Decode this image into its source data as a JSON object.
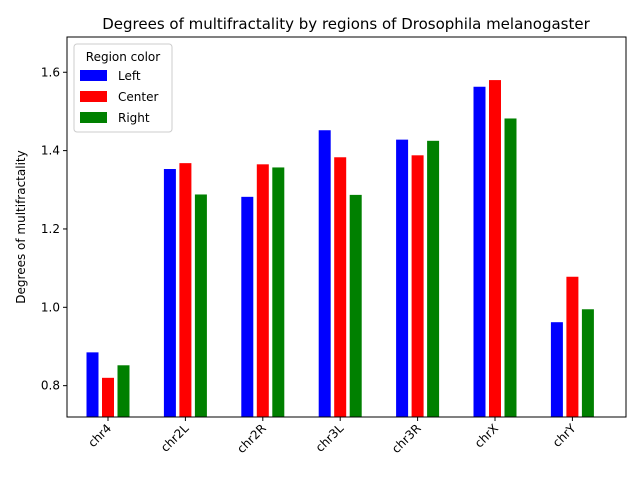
{
  "chart_data": {
    "type": "bar",
    "title": "Degrees of multifractality by regions of Drosophila melanogaster",
    "xlabel": "",
    "ylabel": "Degrees of multifractality",
    "categories": [
      "chr4",
      "chr2L",
      "chr2R",
      "chr3L",
      "chr3R",
      "chrX",
      "chrY"
    ],
    "series": [
      {
        "name": "Left",
        "color": "#0000ff",
        "values": [
          0.885,
          1.353,
          1.282,
          1.452,
          1.428,
          1.563,
          0.962
        ]
      },
      {
        "name": "Center",
        "color": "#ff0000",
        "values": [
          0.82,
          1.368,
          1.365,
          1.383,
          1.388,
          1.58,
          1.078
        ]
      },
      {
        "name": "Right",
        "color": "#008000",
        "values": [
          0.852,
          1.288,
          1.357,
          1.287,
          1.425,
          1.482,
          0.995
        ]
      }
    ],
    "ylim": [
      0.72,
      1.69
    ],
    "yticks": [
      0.8,
      1.0,
      1.2,
      1.4,
      1.6
    ],
    "ytick_labels": [
      "0.8",
      "1.0",
      "1.2",
      "1.4",
      "1.6"
    ],
    "legend": {
      "title": "Region color",
      "placement": "top-left"
    },
    "grid": false
  }
}
